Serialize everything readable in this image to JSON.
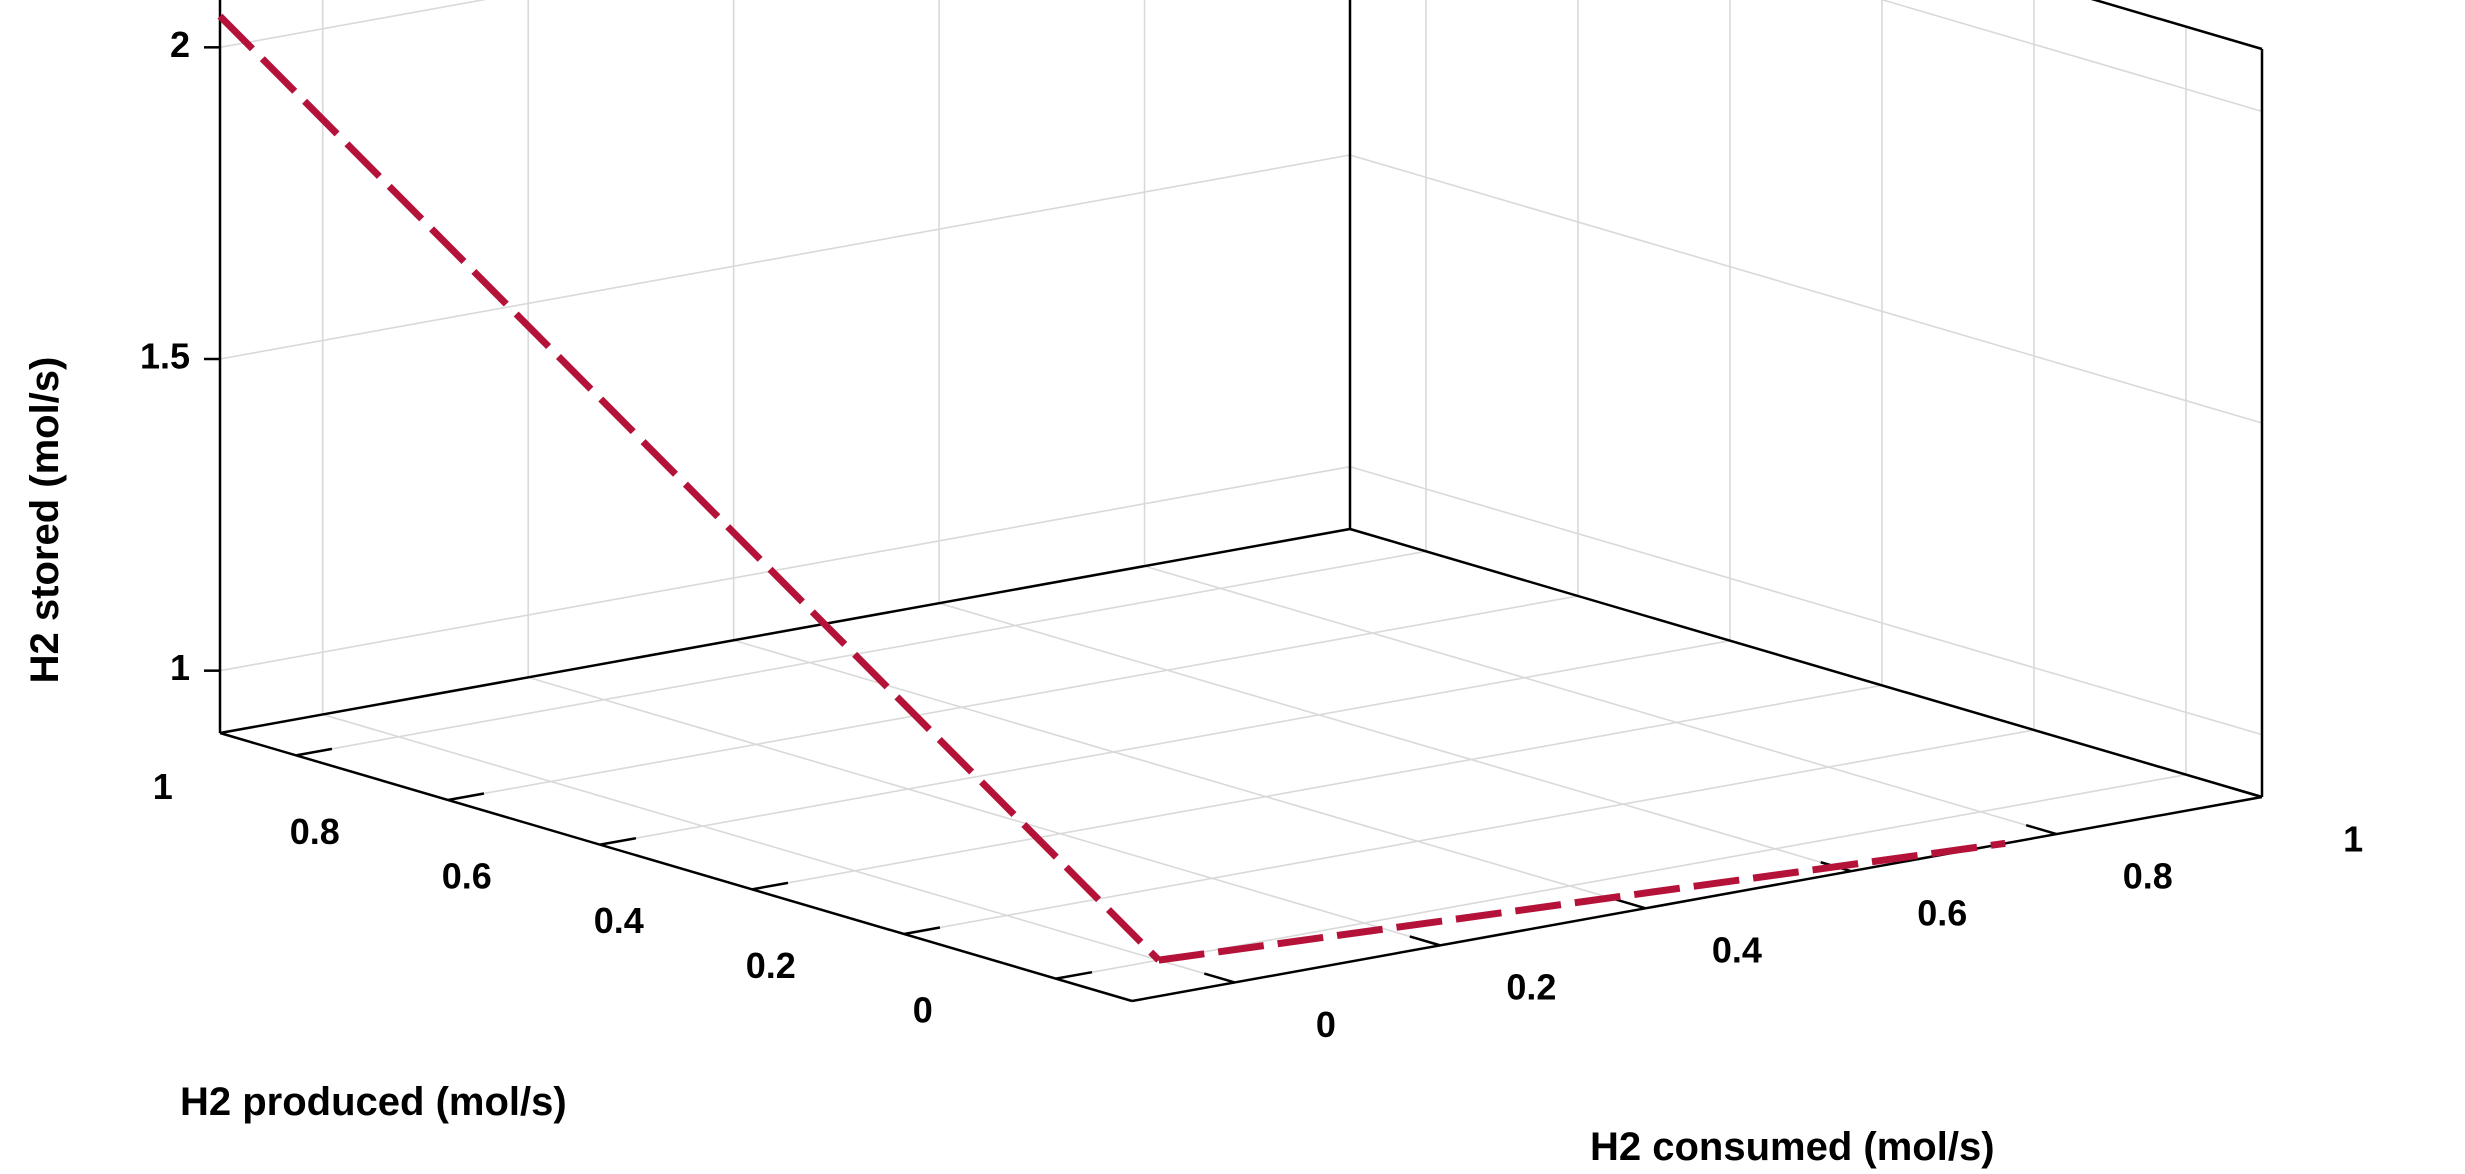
{
  "chart_data": {
    "type": "line",
    "projection": "3d",
    "title": "",
    "xlabel": "H2 produced (mol/s)",
    "ylabel": "H2 consumed (mol/s)",
    "zlabel": "H2 stored (mol/s)",
    "xlim": [
      -0.1,
      1.1
    ],
    "ylim": [
      -0.1,
      1.0
    ],
    "zlim": [
      0.9,
      2.1
    ],
    "x_ticks": [
      0,
      0.2,
      0.4,
      0.6,
      0.8,
      1
    ],
    "x_tick_labels": [
      "0",
      "0.2",
      "0.4",
      "0.6",
      "0.8",
      "1"
    ],
    "y_ticks": [
      0,
      0.2,
      0.4,
      0.6,
      0.8,
      1
    ],
    "y_tick_labels": [
      "0",
      "0.2",
      "0.4",
      "0.6",
      "0.8",
      "1"
    ],
    "z_ticks": [
      1,
      1.5,
      2
    ],
    "z_tick_labels": [
      "1",
      "1.5",
      "2"
    ],
    "grid": true,
    "series": [
      {
        "color": "#b5123a",
        "style": "dashed",
        "points": [
          {
            "x": 1.1,
            "y": -0.1,
            "z": 2.05
          },
          {
            "x": 0.0,
            "y": 0.0,
            "z": 0.9
          }
        ]
      },
      {
        "color": "#b5123a",
        "style": "dashed",
        "points": [
          {
            "x": 0.0,
            "y": 0.0,
            "z": 0.9
          },
          {
            "x": -0.1,
            "y": 0.75,
            "z": 0.9
          }
        ]
      }
    ]
  }
}
